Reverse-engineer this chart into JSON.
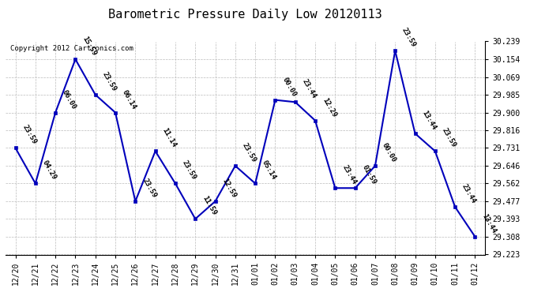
{
  "title": "Barometric Pressure Daily Low 20120113",
  "copyright": "Copyright 2012 Cartronics.com",
  "x_labels": [
    "12/20",
    "12/21",
    "12/22",
    "12/23",
    "12/24",
    "12/25",
    "12/26",
    "12/27",
    "12/28",
    "12/29",
    "12/30",
    "12/31",
    "01/01",
    "01/02",
    "01/03",
    "01/04",
    "01/05",
    "01/06",
    "01/07",
    "01/08",
    "01/09",
    "01/10",
    "01/11",
    "01/12"
  ],
  "y_values": [
    29.731,
    29.562,
    29.9,
    30.154,
    29.985,
    29.9,
    29.477,
    29.716,
    29.562,
    29.393,
    29.477,
    29.646,
    29.562,
    29.96,
    29.95,
    29.862,
    29.54,
    29.54,
    29.646,
    30.195,
    29.8,
    29.716,
    29.45,
    29.308
  ],
  "time_labels": [
    "23:59",
    "04:29",
    "06:00",
    "15:59",
    "23:59",
    "06:14",
    "23:59",
    "11:14",
    "23:59",
    "11:59",
    "12:59",
    "23:59",
    "05:14",
    "00:00",
    "23:44",
    "12:29",
    "23:44",
    "01:59",
    "00:00",
    "23:59",
    "13:44",
    "23:59",
    "23:44",
    "13:44"
  ],
  "ylim_min": 29.223,
  "ylim_max": 30.239,
  "yticks": [
    29.223,
    29.308,
    29.393,
    29.477,
    29.562,
    29.646,
    29.731,
    29.816,
    29.9,
    29.985,
    30.069,
    30.154,
    30.239
  ],
  "line_color": "#0000bb",
  "marker_color": "#0000bb",
  "bg_color": "#ffffff",
  "grid_color": "#bbbbbb",
  "title_fontsize": 11,
  "tick_fontsize": 7,
  "annotation_fontsize": 6.5,
  "copyright_fontsize": 6.5
}
